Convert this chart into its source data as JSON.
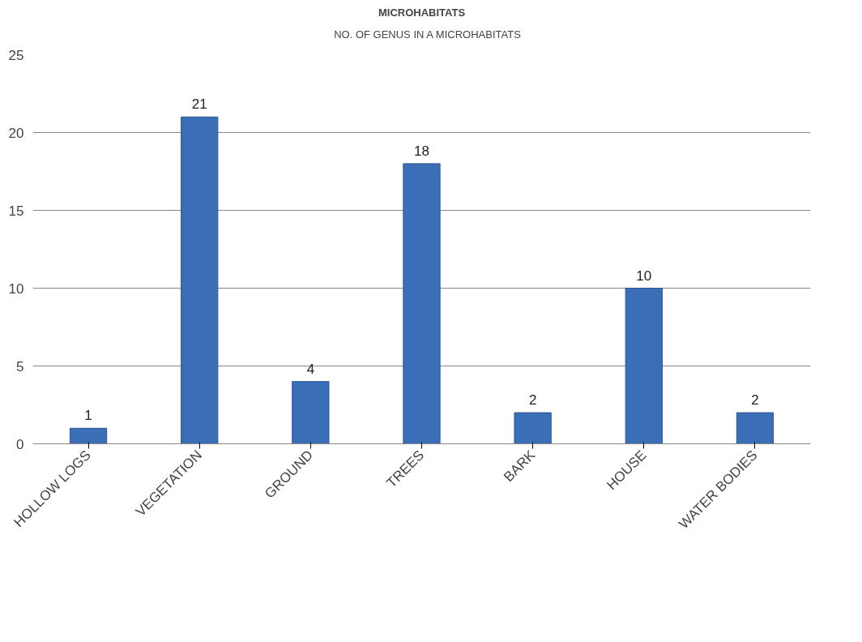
{
  "chart_data": {
    "type": "bar",
    "title": "MICROHABITATS",
    "categories": [
      "HOLLOW LOGS",
      "VEGETATION",
      "GROUND",
      "TREES",
      "BARK",
      "HOUSE",
      "WATER BODIES"
    ],
    "series": [
      {
        "name": "NO. OF GENUS IN A MICROHABITATS",
        "color": "#3a6fb8",
        "values": [
          1,
          21,
          4,
          18,
          2,
          10,
          2
        ]
      }
    ],
    "ylim": [
      0,
      25
    ],
    "yticks": [
      0,
      5,
      10,
      15,
      20,
      25
    ],
    "grid": "y",
    "legend": "top",
    "data_labels": true
  }
}
